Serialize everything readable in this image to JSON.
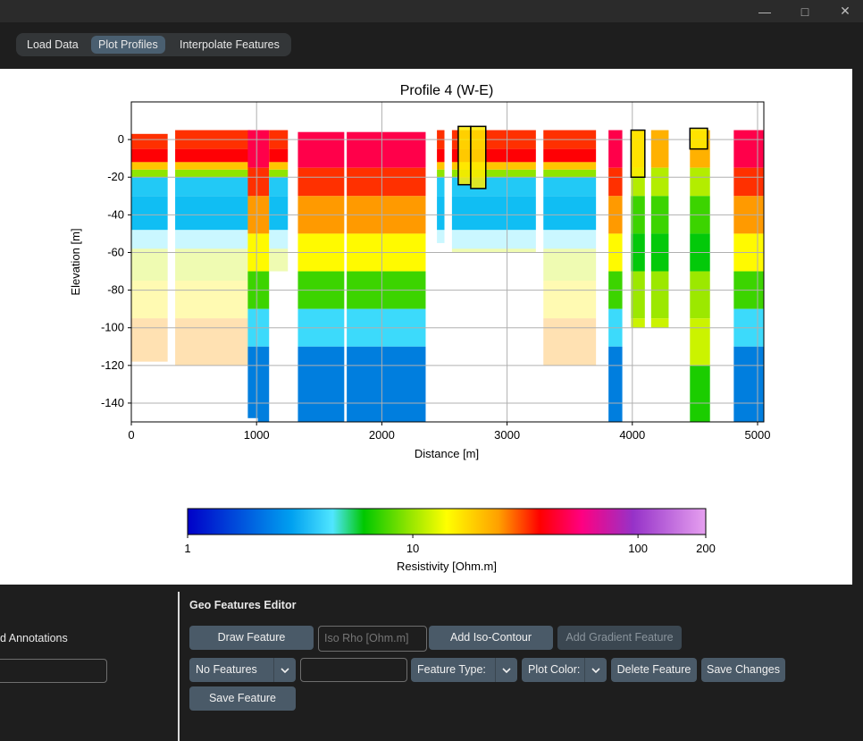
{
  "window": {
    "minimize_icon": "minimize-icon",
    "maximize_icon": "maximize-icon",
    "close_icon": "close-icon"
  },
  "tabs": [
    {
      "label": "Load Data",
      "active": false
    },
    {
      "label": "Plot Profiles",
      "active": true
    },
    {
      "label": "Interpolate Features",
      "active": false
    }
  ],
  "chart_data": {
    "type": "heatmap",
    "title": "Profile 4 (W-E)",
    "xlabel": "Distance [m]",
    "ylabel": "Elevation [m]",
    "xlim": [
      0,
      5050
    ],
    "ylim": [
      -150,
      20
    ],
    "xticks": [
      0,
      1000,
      2000,
      3000,
      4000,
      5000
    ],
    "yticks": [
      0,
      -20,
      -40,
      -60,
      -80,
      -100,
      -120,
      -140
    ],
    "grid": true,
    "colorbar": {
      "label": "Resistivity [Ohm.m]",
      "scale": "log",
      "range": [
        1,
        200
      ],
      "ticks": [
        "1",
        "10",
        "100",
        "200"
      ],
      "colormap": [
        "#0000c8",
        "#0078dc",
        "#00b4f0",
        "#50e6ff",
        "#00c800",
        "#96e600",
        "#ffff00",
        "#ffa000",
        "#ff0000",
        "#ff0080",
        "#9632c8",
        "#e6a0f0"
      ]
    },
    "highlighted_features": [
      {
        "x": [
          2610,
          2710
        ],
        "y": [
          -24,
          7
        ]
      },
      {
        "x": [
          2710,
          2830
        ],
        "y": [
          -26,
          7
        ]
      },
      {
        "x": [
          3990,
          4100
        ],
        "y": [
          -20,
          5
        ]
      },
      {
        "x": [
          4460,
          4600
        ],
        "y": [
          -5,
          6
        ]
      }
    ]
  },
  "left_panel": {
    "title": "d Annotations",
    "input_value": ""
  },
  "editor": {
    "title": "Geo Features Editor",
    "draw_feature": "Draw Feature",
    "iso_rho_placeholder": "Iso Rho [Ohm.m]",
    "add_iso_contour": "Add Iso-Contour",
    "add_gradient_feature": "Add Gradient Feature",
    "features_select": "No Features",
    "feature_name_value": "",
    "feature_type": "Feature Type:",
    "plot_color": "Plot Color:",
    "delete_feature": "Delete Feature",
    "save_changes": "Save Changes",
    "save_feature": "Save Feature"
  }
}
